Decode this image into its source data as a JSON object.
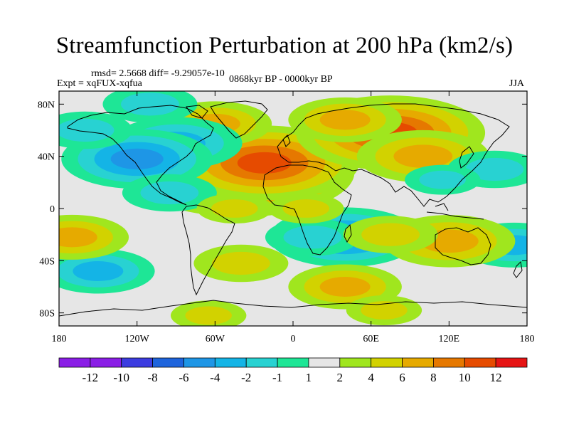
{
  "title": "Streamfunction Perturbation at 200 hPa (km2/s)",
  "stats_line": "rmsd= 2.5668 diff= -9.29057e-10",
  "experiment_line": "Expt = xqFUX-xqfua",
  "period_line": "0868kyr BP - 0000kyr BP",
  "season": "JJA",
  "lat_ticks": [
    "80N",
    "40N",
    "0",
    "40S",
    "80S"
  ],
  "lon_ticks": [
    "180",
    "120W",
    "60W",
    "0",
    "60E",
    "120E",
    "180"
  ],
  "colorbar": {
    "labels": [
      "-12",
      "-10",
      "-8",
      "-6",
      "-4",
      "-2",
      "-1",
      "1",
      "2",
      "4",
      "6",
      "8",
      "10",
      "12"
    ],
    "colors": [
      "#8a1ee6",
      "#3c3ce0",
      "#1e64dc",
      "#1e96e6",
      "#14b4e6",
      "#28d2d2",
      "#1ee696",
      "#e6e6e6",
      "#a0e61e",
      "#d2d200",
      "#e6aa00",
      "#e67800",
      "#e64b00",
      "#e61414"
    ]
  },
  "chart_data": {
    "type": "heatmap",
    "title": "Streamfunction Perturbation at 200 hPa (km2/s)",
    "variable": "streamfunction perturbation",
    "units": "km2/s",
    "level": "200 hPa",
    "season": "JJA",
    "xlim": [
      -180,
      180
    ],
    "ylim": [
      -90,
      90
    ],
    "levels": [
      -12,
      -10,
      -8,
      -6,
      -4,
      -2,
      -1,
      1,
      2,
      4,
      6,
      8,
      10,
      12
    ],
    "features": [
      {
        "lon": -40,
        "lat": 28,
        "value": 10
      },
      {
        "lon": -22,
        "lat": 35,
        "value": 8
      },
      {
        "lon": 75,
        "lat": 58,
        "value": 8
      },
      {
        "lon": 100,
        "lat": 40,
        "value": 5
      },
      {
        "lon": 40,
        "lat": 68,
        "value": 4
      },
      {
        "lon": -60,
        "lat": 65,
        "value": 4
      },
      {
        "lon": -110,
        "lat": 80,
        "value": -3
      },
      {
        "lon": -90,
        "lat": 50,
        "value": -5
      },
      {
        "lon": -120,
        "lat": 38,
        "value": -6
      },
      {
        "lon": -160,
        "lat": 60,
        "value": -3
      },
      {
        "lon": -95,
        "lat": 12,
        "value": -3
      },
      {
        "lon": 155,
        "lat": 30,
        "value": -3
      },
      {
        "lon": 115,
        "lat": 22,
        "value": -2
      },
      {
        "lon": 40,
        "lat": -22,
        "value": -6
      },
      {
        "lon": 15,
        "lat": -22,
        "value": -3
      },
      {
        "lon": 170,
        "lat": -28,
        "value": -4
      },
      {
        "lon": -150,
        "lat": -48,
        "value": -4
      },
      {
        "lon": 120,
        "lat": -25,
        "value": 5
      },
      {
        "lon": 75,
        "lat": -20,
        "value": 3
      },
      {
        "lon": 40,
        "lat": -60,
        "value": 4
      },
      {
        "lon": -170,
        "lat": -22,
        "value": 4
      },
      {
        "lon": -40,
        "lat": -42,
        "value": 3
      },
      {
        "lon": 70,
        "lat": -78,
        "value": 2
      },
      {
        "lon": -65,
        "lat": -82,
        "value": 2
      },
      {
        "lon": 10,
        "lat": 0,
        "value": 2
      },
      {
        "lon": -45,
        "lat": 0,
        "value": 2
      }
    ]
  }
}
